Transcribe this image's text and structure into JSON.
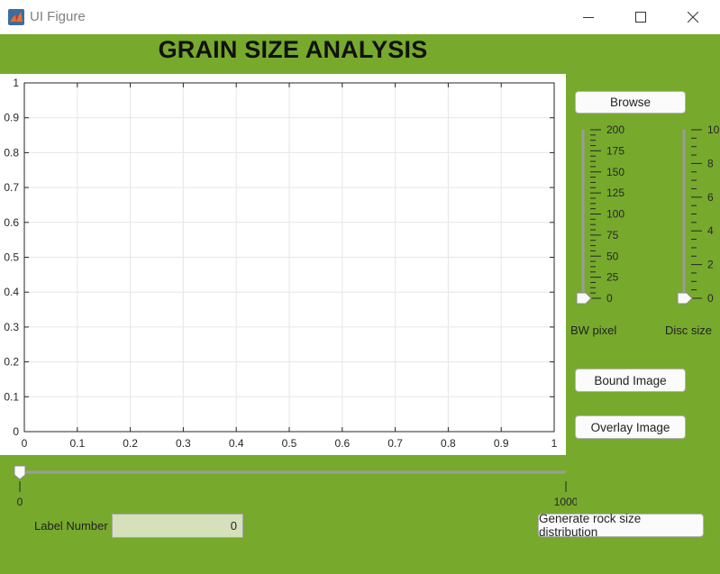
{
  "window": {
    "title": "UI Figure",
    "icon": "matlab-icon",
    "controls": [
      "minimize-icon",
      "maximize-icon",
      "close-icon"
    ]
  },
  "heading": "GRAIN SIZE ANALYSIS",
  "axes": {
    "x_ticks": [
      "0",
      "0.1",
      "0.2",
      "0.3",
      "0.4",
      "0.5",
      "0.6",
      "0.7",
      "0.8",
      "0.9",
      "1"
    ],
    "y_ticks": [
      "0",
      "0.1",
      "0.2",
      "0.3",
      "0.4",
      "0.5",
      "0.6",
      "0.7",
      "0.8",
      "0.9",
      "1"
    ],
    "xlim": [
      0,
      1
    ],
    "ylim": [
      0,
      1
    ],
    "grid": true
  },
  "slider_bw": {
    "labels": [
      "0",
      "25",
      "50",
      "75",
      "100",
      "125",
      "150",
      "175",
      "200"
    ],
    "min": 0,
    "max": 200,
    "value": 0,
    "caption": "BW pixel"
  },
  "slider_disc": {
    "labels": [
      "0",
      "2",
      "4",
      "6",
      "8",
      "10"
    ],
    "min": 0,
    "max": 10,
    "value": 0,
    "caption": "Disc size"
  },
  "slider_label": {
    "min_label": "0",
    "max_label": "1000",
    "min": 0,
    "max": 1000,
    "value": 0
  },
  "buttons": {
    "browse": "Browse",
    "bound": "Bound Image",
    "overlay": "Overlay Image",
    "generate": "Generate rock size distribution"
  },
  "label_number": {
    "label": "Label Number",
    "value": "0"
  },
  "colors": {
    "background": "#77a92d",
    "edit_field": "#d5e1bb"
  }
}
